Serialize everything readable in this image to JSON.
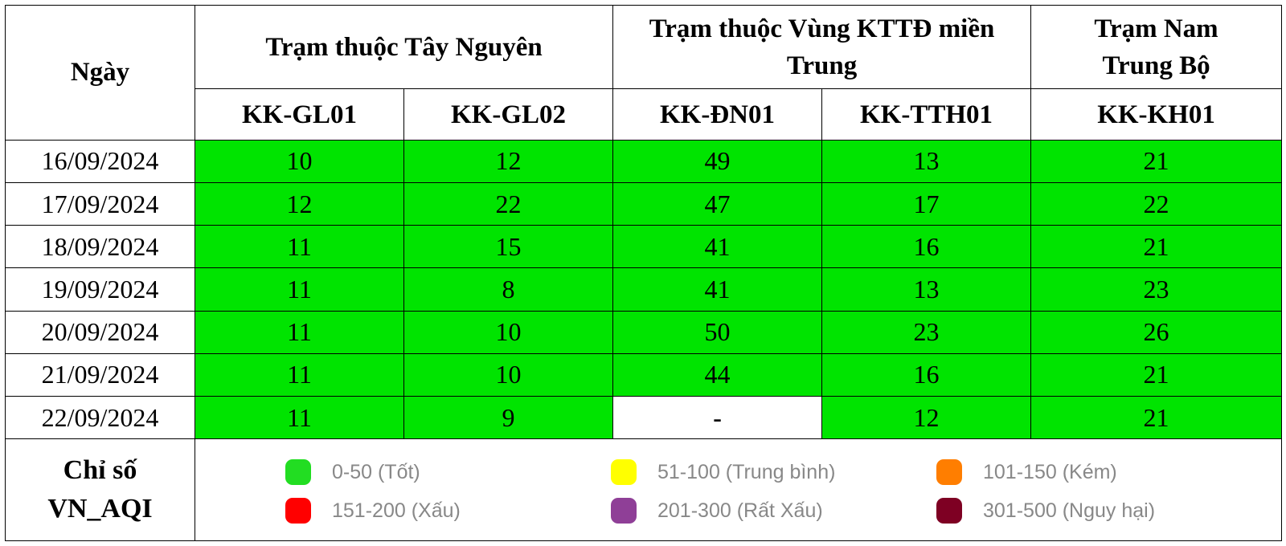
{
  "header": {
    "date_label": "Ngày",
    "groups": [
      {
        "label": "Trạm thuộc Tây Nguyên"
      },
      {
        "label": "Trạm thuộc Vùng KTTĐ miền Trung"
      },
      {
        "label": "Trạm Nam Trung Bộ"
      }
    ],
    "stations": [
      "KK-GL01",
      "KK-GL02",
      "KK-ĐN01",
      "KK-TTH01",
      "KK-KH01"
    ]
  },
  "rows": [
    {
      "date": "16/09/2024",
      "values": [
        "10",
        "12",
        "49",
        "13",
        "21"
      ]
    },
    {
      "date": "17/09/2024",
      "values": [
        "12",
        "22",
        "47",
        "17",
        "22"
      ]
    },
    {
      "date": "18/09/2024",
      "values": [
        "11",
        "15",
        "41",
        "16",
        "21"
      ]
    },
    {
      "date": "19/09/2024",
      "values": [
        "11",
        "8",
        "41",
        "13",
        "23"
      ]
    },
    {
      "date": "20/09/2024",
      "values": [
        "11",
        "10",
        "50",
        "23",
        "26"
      ]
    },
    {
      "date": "21/09/2024",
      "values": [
        "11",
        "10",
        "44",
        "16",
        "21"
      ]
    },
    {
      "date": "22/09/2024",
      "values": [
        "11",
        "9",
        "-",
        "12",
        "21"
      ]
    }
  ],
  "legend": {
    "title_line1": "Chỉ số",
    "title_line2": "VN_AQI",
    "items": [
      {
        "label": "0-50 (Tốt)",
        "color": "#22dd22"
      },
      {
        "label": "51-100 (Trung bình)",
        "color": "#ffff00"
      },
      {
        "label": "101-150 (Kém)",
        "color": "#ff7e00"
      },
      {
        "label": "151-200 (Xấu)",
        "color": "#ff0000"
      },
      {
        "label": "201-300 (Rất Xấu)",
        "color": "#8f3f97"
      },
      {
        "label": "301-500 (Nguy hại)",
        "color": "#7e0023"
      }
    ]
  },
  "colors": {
    "good": "#00e400",
    "no_data": "#ffffff"
  }
}
